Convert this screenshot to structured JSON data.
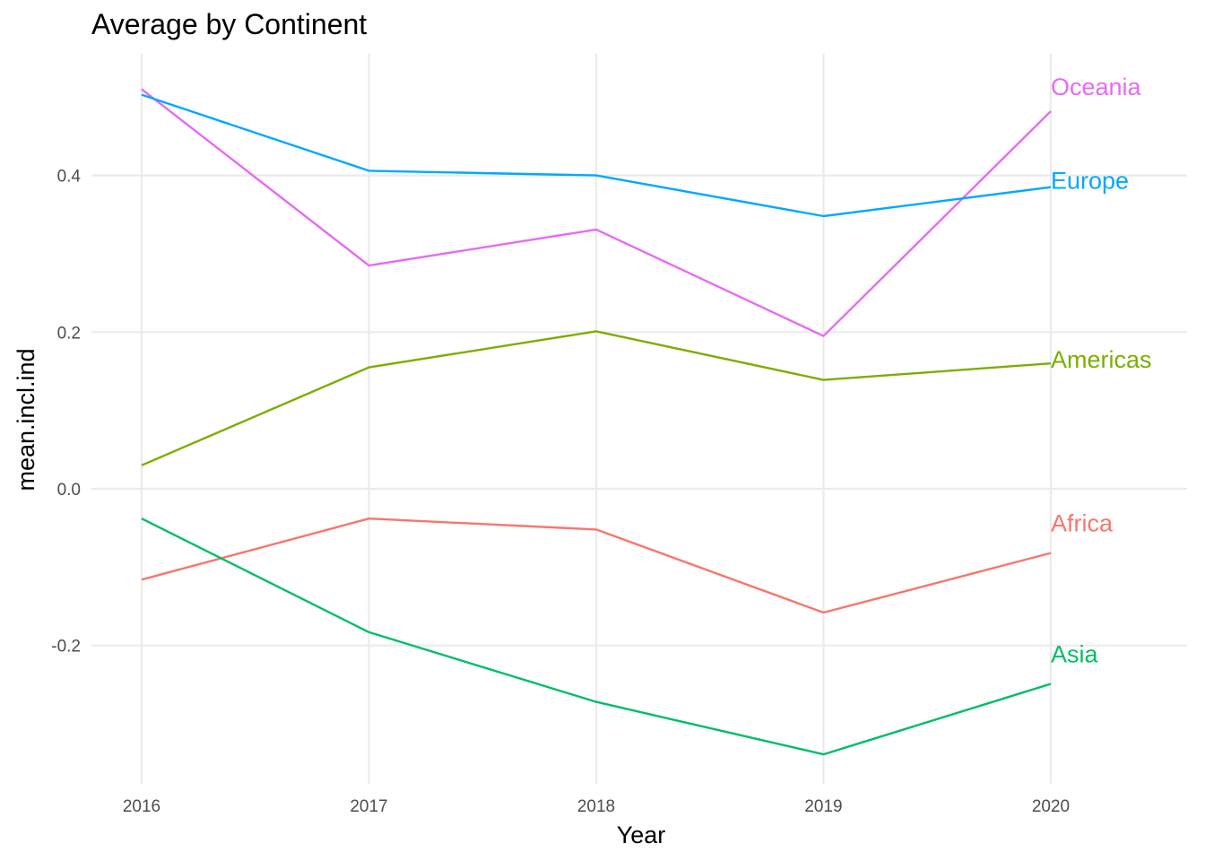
{
  "chart_data": {
    "type": "line",
    "title": "Average by Continent",
    "xlabel": "Year",
    "ylabel": "mean.incl.ind",
    "x": [
      2016,
      2017,
      2018,
      2019,
      2020
    ],
    "x_tick_labels": [
      "2016",
      "2017",
      "2018",
      "2019",
      "2020"
    ],
    "y_ticks": [
      -0.2,
      0.0,
      0.2,
      0.4
    ],
    "y_tick_labels": [
      "-0.2",
      "0.0",
      "0.2",
      "0.4"
    ],
    "xlim": [
      2016,
      2020.58
    ],
    "ylim": [
      -0.38,
      0.555
    ],
    "grid": true,
    "legend": "direct labels at line ends",
    "series": [
      {
        "name": "Oceania",
        "color": "#E76BF3",
        "values": [
          0.51,
          0.285,
          0.331,
          0.195,
          0.482
        ]
      },
      {
        "name": "Europe",
        "color": "#00A9FF",
        "values": [
          0.503,
          0.406,
          0.4,
          0.348,
          0.385
        ]
      },
      {
        "name": "Americas",
        "color": "#7CAE00",
        "values": [
          0.03,
          0.155,
          0.201,
          0.139,
          0.16
        ]
      },
      {
        "name": "Africa",
        "color": "#F8766D",
        "values": [
          -0.116,
          -0.038,
          -0.052,
          -0.158,
          -0.082
        ]
      },
      {
        "name": "Asia",
        "color": "#00BE67",
        "values": [
          -0.038,
          -0.183,
          -0.272,
          -0.339,
          -0.249
        ]
      }
    ]
  }
}
